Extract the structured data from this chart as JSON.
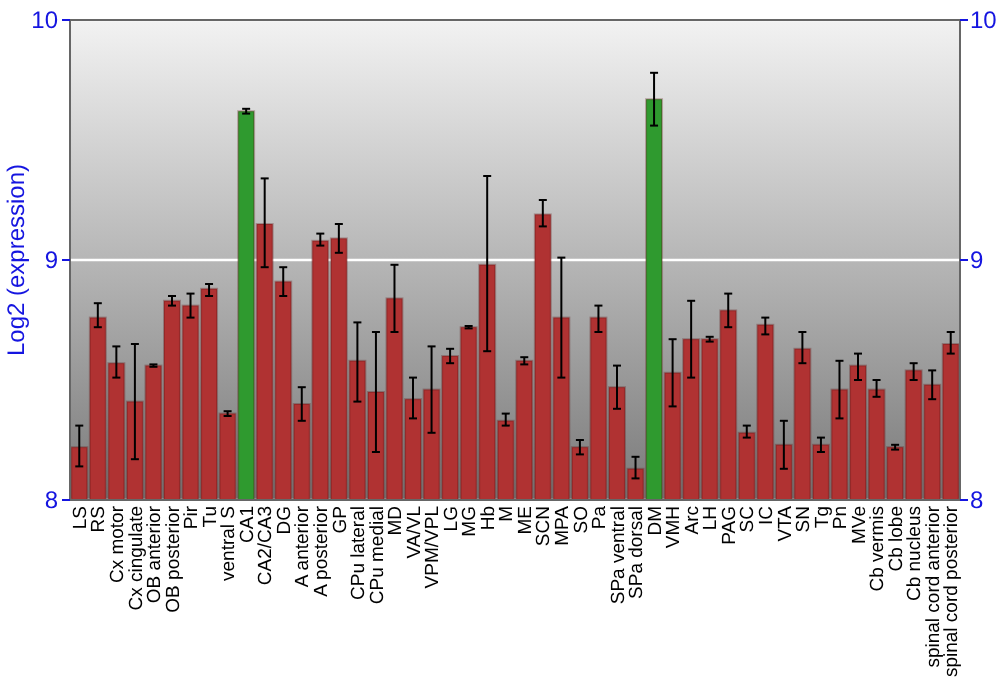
{
  "chart_data": {
    "type": "bar",
    "ylabel": "Log2 (expression)",
    "categories": [
      "LS",
      "RS",
      "Cx motor",
      "Cx cingulate",
      "OB anterior",
      "OB posterior",
      "Pir",
      "Tu",
      "ventral S",
      "CA1",
      "CA2/CA3",
      "DG",
      "A anterior",
      "A posterior",
      "GP",
      "CPu lateral",
      "CPu medial",
      "MD",
      "VA/VL",
      "VPM/VPL",
      "LG",
      "MG",
      "Hb",
      "M",
      "ME",
      "SCN",
      "MPA",
      "SO",
      "Pa",
      "SPa ventral",
      "SPa dorsal",
      "DM",
      "VMH",
      "Arc",
      "LH",
      "PAG",
      "SC",
      "IC",
      "VTA",
      "SN",
      "Tg",
      "Pn",
      "MVe",
      "Cb vermis",
      "Cb lobe",
      "Cb nucleus",
      "spinal cord anterior",
      "spinal cord posterior"
    ],
    "values": [
      8.22,
      8.76,
      8.57,
      8.41,
      8.56,
      8.83,
      8.81,
      8.88,
      8.36,
      9.62,
      9.15,
      8.91,
      8.4,
      9.08,
      9.09,
      8.58,
      8.45,
      8.84,
      8.42,
      8.46,
      8.6,
      8.72,
      8.98,
      8.33,
      8.58,
      9.19,
      8.76,
      8.22,
      8.76,
      8.47,
      8.13,
      9.67,
      8.53,
      8.67,
      8.67,
      8.79,
      8.28,
      8.73,
      8.23,
      8.63,
      8.23,
      8.46,
      8.56,
      8.46,
      8.22,
      8.54,
      8.48,
      8.65
    ],
    "errors": [
      [
        8.14,
        8.31
      ],
      [
        8.72,
        8.82
      ],
      [
        8.51,
        8.64
      ],
      [
        8.17,
        8.65
      ],
      0.005,
      [
        8.81,
        8.85
      ],
      [
        8.76,
        8.86
      ],
      [
        8.85,
        8.9
      ],
      0.01,
      0.01,
      [
        8.97,
        9.34
      ],
      [
        8.85,
        8.97
      ],
      [
        8.33,
        8.47
      ],
      [
        9.06,
        9.11
      ],
      [
        9.03,
        9.15
      ],
      [
        8.41,
        8.74
      ],
      [
        8.2,
        8.7
      ],
      [
        8.7,
        8.98
      ],
      [
        8.34,
        8.51
      ],
      [
        8.28,
        8.64
      ],
      [
        8.57,
        8.63
      ],
      0.005,
      [
        8.62,
        9.35
      ],
      [
        8.31,
        8.36
      ],
      0.015,
      [
        9.14,
        9.25
      ],
      [
        8.51,
        9.01
      ],
      [
        8.19,
        8.25
      ],
      [
        8.7,
        8.81
      ],
      [
        8.38,
        8.56
      ],
      [
        8.09,
        8.18
      ],
      [
        9.56,
        9.78
      ],
      [
        8.39,
        8.67
      ],
      [
        8.51,
        8.83
      ],
      0.01,
      [
        8.72,
        8.86
      ],
      [
        8.26,
        8.31
      ],
      [
        8.69,
        8.76
      ],
      [
        8.13,
        8.33
      ],
      [
        8.57,
        8.7
      ],
      [
        8.2,
        8.26
      ],
      [
        8.34,
        8.58
      ],
      [
        8.5,
        8.61
      ],
      [
        8.43,
        8.5
      ],
      0.01,
      [
        8.5,
        8.57
      ],
      [
        8.42,
        8.54
      ],
      [
        8.61,
        8.7
      ]
    ],
    "colors": [
      "#b03232",
      "#b03232",
      "#b03232",
      "#b03232",
      "#b03232",
      "#b03232",
      "#b03232",
      "#b03232",
      "#b03232",
      "#2f9a2f",
      "#b03232",
      "#b03232",
      "#b03232",
      "#b03232",
      "#b03232",
      "#b03232",
      "#b03232",
      "#b03232",
      "#b03232",
      "#b03232",
      "#b03232",
      "#b03232",
      "#b03232",
      "#b03232",
      "#b03232",
      "#b03232",
      "#b03232",
      "#b03232",
      "#b03232",
      "#b03232",
      "#b03232",
      "#2f9a2f",
      "#b03232",
      "#b03232",
      "#b03232",
      "#b03232",
      "#b03232",
      "#b03232",
      "#b03232",
      "#b03232",
      "#b03232",
      "#b03232",
      "#b03232",
      "#b03232",
      "#b03232",
      "#b03232",
      "#b03232",
      "#b03232"
    ],
    "ylim": [
      8,
      10
    ],
    "yticks": [
      8,
      9,
      10
    ],
    "y2lim": [
      8,
      10
    ],
    "y2ticks": [
      8,
      9,
      10
    ],
    "grid": "y"
  }
}
